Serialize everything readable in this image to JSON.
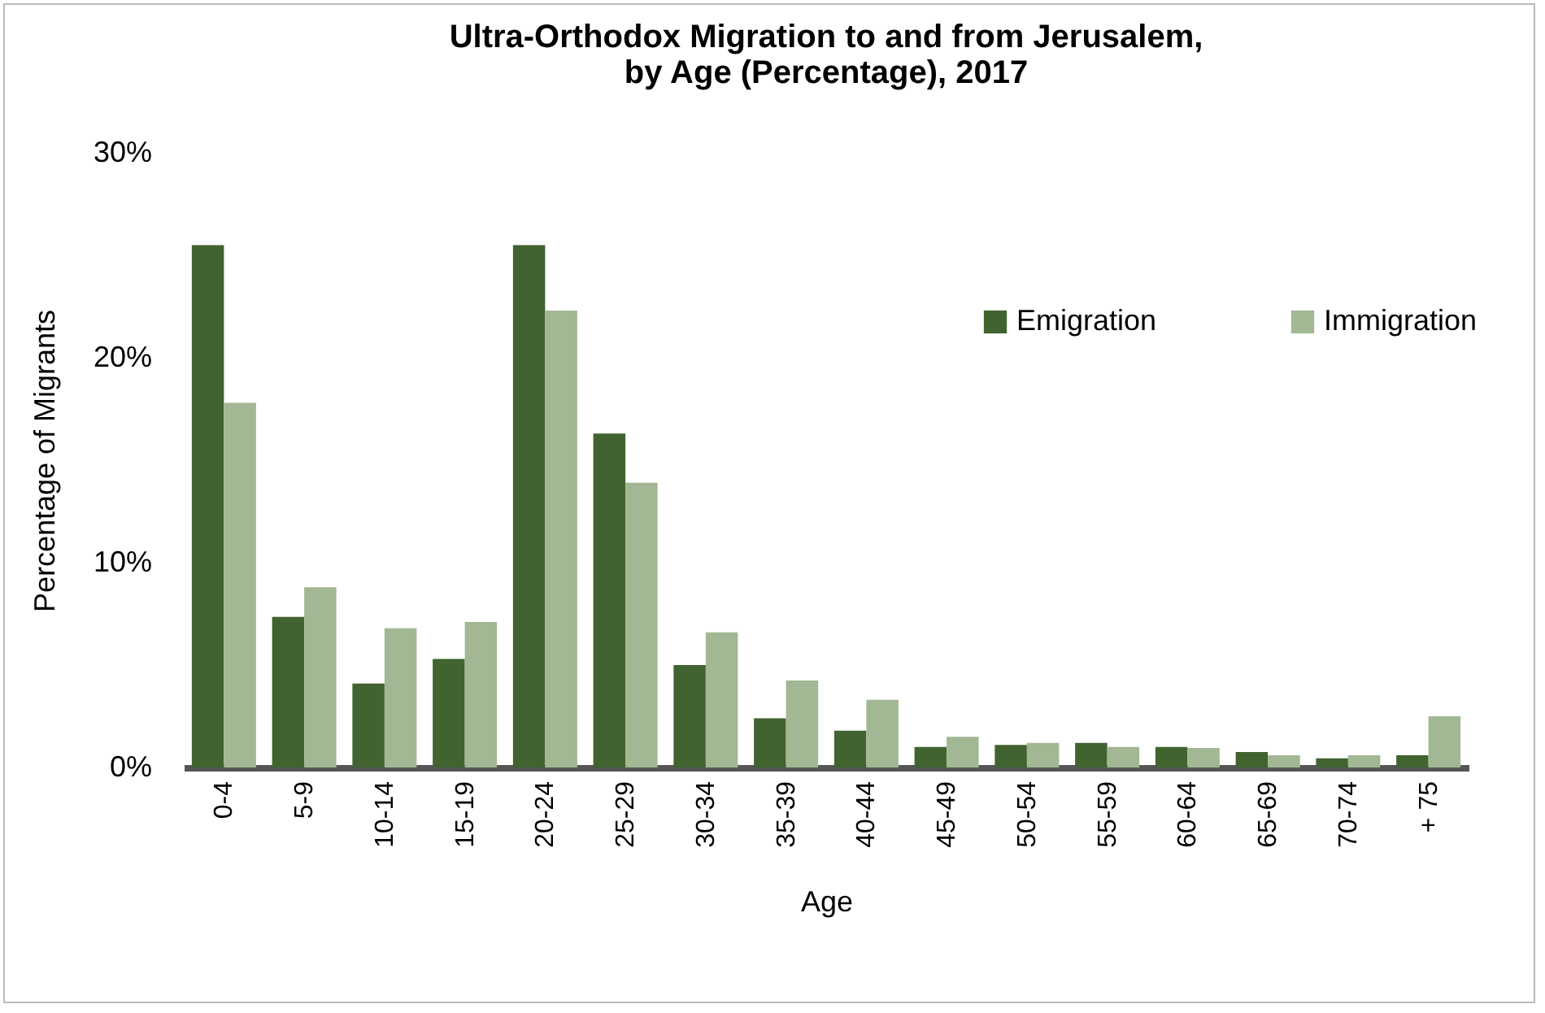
{
  "chart_data": {
    "type": "bar",
    "title": "Ultra-Orthodox Migration to and from Jerusalem,\nby Age (Percentage), 2017",
    "xlabel": "Age",
    "ylabel": "Percentage of Migrants",
    "categories": [
      "0-4",
      "5-9",
      "10-14",
      "15-19",
      "20-24",
      "25-29",
      "30-34",
      "35-39",
      "40-44",
      "45-49",
      "50-54",
      "55-59",
      "60-64",
      "65-69",
      "70-74",
      "+ 75"
    ],
    "series": [
      {
        "name": "Emigration",
        "color": "#41632f",
        "values": [
          25.5,
          7.35,
          4.1,
          5.3,
          25.5,
          16.3,
          5.0,
          2.4,
          1.8,
          1.0,
          1.1,
          1.2,
          1.0,
          0.75,
          0.45,
          0.6
        ]
      },
      {
        "name": "Immigration",
        "color": "#a2b793",
        "values": [
          17.8,
          8.8,
          6.8,
          7.1,
          22.3,
          13.9,
          6.6,
          4.25,
          3.3,
          1.5,
          1.2,
          1.0,
          0.95,
          0.6,
          0.6,
          2.5
        ]
      }
    ],
    "ylim": [
      0,
      30
    ],
    "yticks": [
      {
        "value": 0,
        "label": "0%"
      },
      {
        "value": 10,
        "label": "10%"
      },
      {
        "value": 20,
        "label": "20%"
      },
      {
        "value": 30,
        "label": "30%"
      }
    ],
    "grid": false,
    "legend": "top right"
  }
}
